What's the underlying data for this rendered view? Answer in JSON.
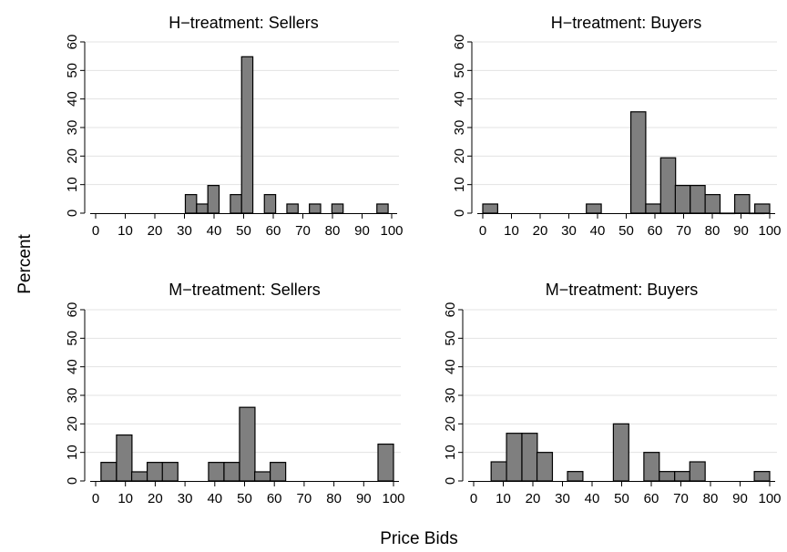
{
  "figure": {
    "ylabel": "Percent",
    "xlabel": "Price Bids"
  },
  "chart_data": [
    {
      "type": "bar",
      "title": "H−treatment: Sellers",
      "xlim": [
        0,
        100
      ],
      "ylim": [
        0,
        60
      ],
      "x_ticks": [
        0,
        10,
        20,
        30,
        40,
        50,
        60,
        70,
        80,
        90,
        100
      ],
      "y_ticks": [
        0,
        10,
        20,
        30,
        40,
        50,
        60
      ],
      "bin_width": 3.8,
      "bins": [
        {
          "start": 30.3,
          "value": 6.5
        },
        {
          "start": 34.1,
          "value": 3.2
        },
        {
          "start": 37.9,
          "value": 9.7
        },
        {
          "start": 45.5,
          "value": 6.5
        },
        {
          "start": 49.3,
          "value": 54.8
        },
        {
          "start": 57.0,
          "value": 6.5
        },
        {
          "start": 64.6,
          "value": 3.2
        },
        {
          "start": 72.2,
          "value": 3.2
        },
        {
          "start": 79.8,
          "value": 3.2
        },
        {
          "start": 95.0,
          "value": 3.2
        }
      ]
    },
    {
      "type": "bar",
      "title": "H−treatment: Buyers",
      "xlim": [
        0,
        100
      ],
      "ylim": [
        0,
        60
      ],
      "x_ticks": [
        0,
        10,
        20,
        30,
        40,
        50,
        60,
        70,
        80,
        90,
        100
      ],
      "y_ticks": [
        0,
        10,
        20,
        30,
        40,
        50,
        60
      ],
      "bin_width": 5.2,
      "bins": [
        {
          "start": 0.0,
          "value": 3.2
        },
        {
          "start": 36.1,
          "value": 3.2
        },
        {
          "start": 51.6,
          "value": 35.5
        },
        {
          "start": 56.8,
          "value": 3.2
        },
        {
          "start": 62.0,
          "value": 19.4
        },
        {
          "start": 67.1,
          "value": 9.7
        },
        {
          "start": 72.3,
          "value": 9.7
        },
        {
          "start": 77.5,
          "value": 6.5
        },
        {
          "start": 82.6,
          "value": 0
        },
        {
          "start": 87.8,
          "value": 6.5
        },
        {
          "start": 92.9,
          "value": 0
        },
        {
          "start": 94.8,
          "value": 3.2
        }
      ]
    },
    {
      "type": "bar",
      "title": "M−treatment: Sellers",
      "xlim": [
        0,
        100
      ],
      "ylim": [
        0,
        60
      ],
      "x_ticks": [
        0,
        10,
        20,
        30,
        40,
        50,
        60,
        70,
        80,
        90,
        100
      ],
      "y_ticks": [
        0,
        10,
        20,
        30,
        40,
        50,
        60
      ],
      "bin_width": 5.2,
      "bins": [
        {
          "start": 1.8,
          "value": 6.5
        },
        {
          "start": 7.0,
          "value": 16.1
        },
        {
          "start": 12.1,
          "value": 3.2
        },
        {
          "start": 17.3,
          "value": 6.5
        },
        {
          "start": 22.4,
          "value": 6.5
        },
        {
          "start": 37.9,
          "value": 6.5
        },
        {
          "start": 43.1,
          "value": 6.5
        },
        {
          "start": 48.3,
          "value": 25.8
        },
        {
          "start": 53.4,
          "value": 3.2
        },
        {
          "start": 58.6,
          "value": 6.5
        },
        {
          "start": 94.8,
          "value": 12.9
        }
      ]
    },
    {
      "type": "bar",
      "title": "M−treatment: Buyers",
      "xlim": [
        0,
        100
      ],
      "ylim": [
        0,
        60
      ],
      "x_ticks": [
        0,
        10,
        20,
        30,
        40,
        50,
        60,
        70,
        80,
        90,
        100
      ],
      "y_ticks": [
        0,
        10,
        20,
        30,
        40,
        50,
        60
      ],
      "bin_width": 5.2,
      "bins": [
        {
          "start": 5.9,
          "value": 6.7
        },
        {
          "start": 11.1,
          "value": 16.7
        },
        {
          "start": 16.3,
          "value": 16.7
        },
        {
          "start": 21.4,
          "value": 10.0
        },
        {
          "start": 31.7,
          "value": 3.3
        },
        {
          "start": 47.2,
          "value": 20.0
        },
        {
          "start": 57.5,
          "value": 10.0
        },
        {
          "start": 62.7,
          "value": 3.3
        },
        {
          "start": 67.9,
          "value": 3.3
        },
        {
          "start": 73.0,
          "value": 6.7
        },
        {
          "start": 94.8,
          "value": 3.3
        }
      ]
    }
  ]
}
